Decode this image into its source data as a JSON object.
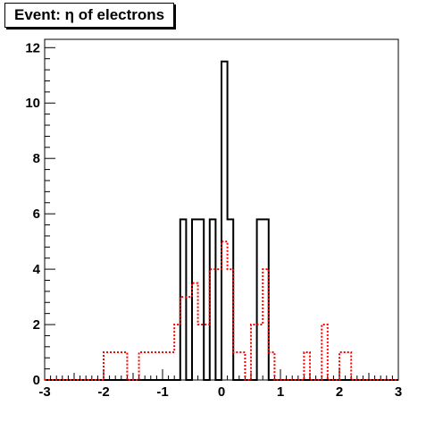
{
  "chart_data": {
    "type": "histogram",
    "title": "Event: η of electrons",
    "xlabel": "",
    "ylabel": "",
    "xlim": [
      -3,
      3
    ],
    "ylim": [
      0,
      12.3
    ],
    "x_ticks": [
      "-3",
      "-2",
      "-1",
      "0",
      "1",
      "2",
      "3"
    ],
    "y_ticks": [
      "0",
      "2",
      "4",
      "6",
      "8",
      "10",
      "12"
    ],
    "grid": false,
    "bin_edges": [
      -3.0,
      -2.8,
      -2.6,
      -2.4,
      -2.2,
      -2.0,
      -1.8,
      -1.6,
      -1.4,
      -1.2,
      -1.0,
      -0.8,
      -0.7,
      -0.6,
      -0.5,
      -0.4,
      -0.3,
      -0.2,
      -0.1,
      0.0,
      0.1,
      0.2,
      0.3,
      0.4,
      0.5,
      0.6,
      0.7,
      0.8,
      0.9,
      1.0,
      1.1,
      1.2,
      1.3,
      1.4,
      1.5,
      1.6,
      1.7,
      1.8,
      1.9,
      2.0,
      2.1,
      2.2,
      2.4,
      2.6,
      2.8,
      3.0
    ],
    "series": [
      {
        "color": "#000000",
        "style": "solid",
        "values": [
          0,
          0,
          0,
          0,
          0,
          0,
          0,
          0,
          0,
          0,
          0,
          0,
          5.8,
          0,
          5.8,
          5.8,
          0,
          5.8,
          0,
          11.5,
          5.8,
          0,
          0,
          0,
          0,
          5.8,
          5.8,
          0,
          0,
          0,
          0,
          0,
          0,
          0,
          0,
          0,
          0,
          0,
          0,
          0,
          0,
          0,
          0,
          0,
          0
        ]
      },
      {
        "color": "#ff0000",
        "style": "dotted",
        "values": [
          0,
          0,
          0,
          0,
          0,
          1,
          1,
          0,
          1,
          1,
          1,
          2,
          3,
          3,
          3.5,
          2,
          2,
          4,
          4,
          5,
          4,
          1,
          1,
          0,
          2,
          2,
          4,
          1,
          0,
          0,
          0,
          0,
          0,
          1,
          0,
          0,
          2,
          0,
          0,
          1,
          1,
          0,
          0,
          0,
          0
        ]
      }
    ]
  }
}
